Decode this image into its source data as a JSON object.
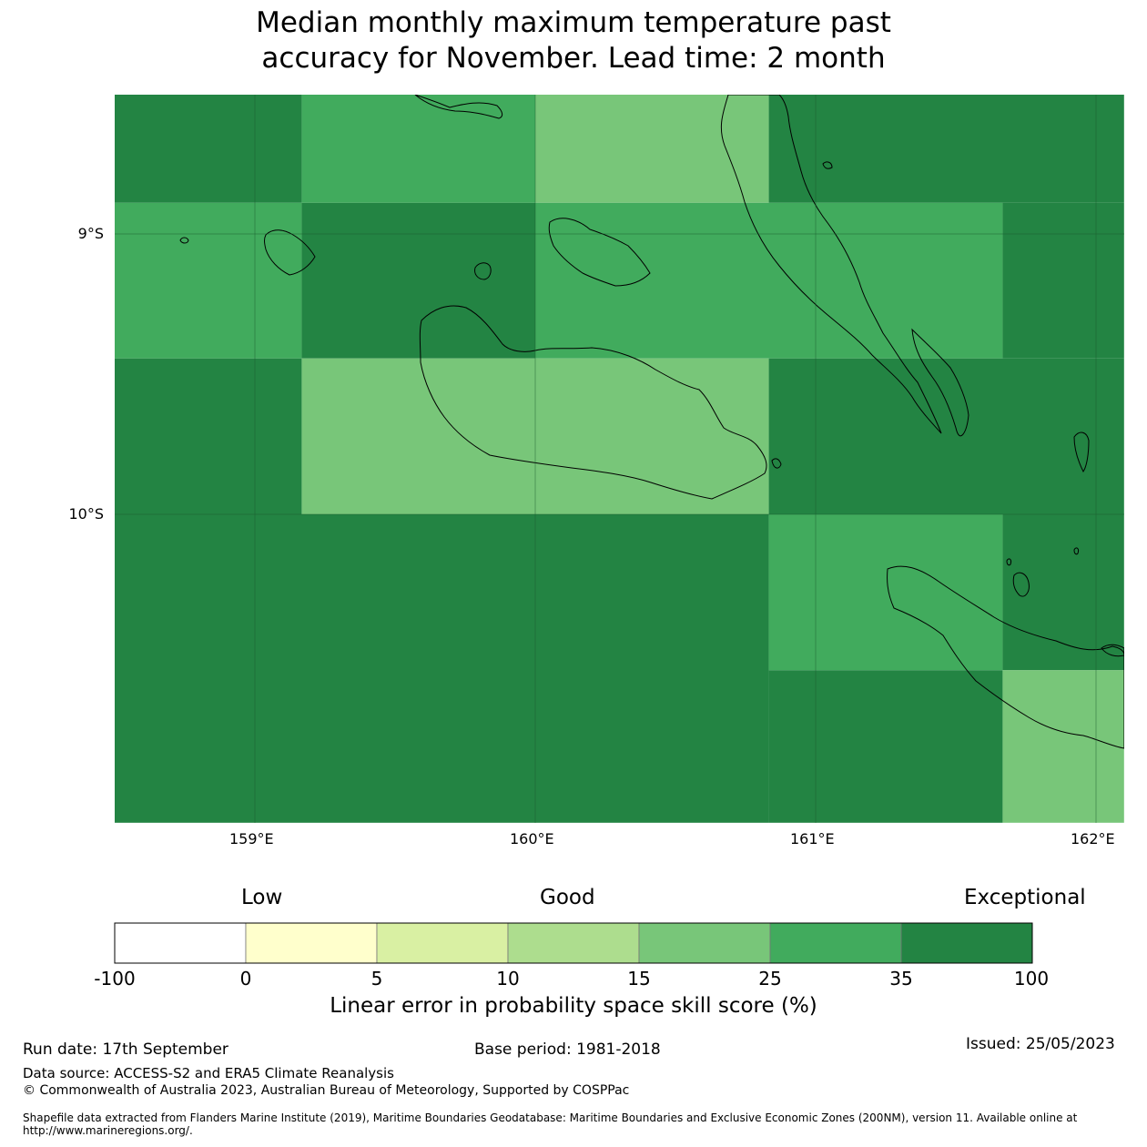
{
  "title": {
    "line1": "Median monthly maximum temperature past",
    "line2": "accuracy for November. Lead time: 2 month"
  },
  "map": {
    "lon_range": [
      158.5,
      162.1
    ],
    "lat_range": [
      -11.1,
      -8.5
    ],
    "lon_ticks": [
      {
        "value": 159,
        "label": "159°E"
      },
      {
        "value": 160,
        "label": "160°E"
      },
      {
        "value": 161,
        "label": "161°E"
      },
      {
        "value": 162,
        "label": "162°E"
      }
    ],
    "lat_ticks": [
      {
        "value": -9,
        "label": "9°S"
      },
      {
        "value": -10,
        "label": "10°S"
      }
    ],
    "colors": {
      "c35_100": "#238443",
      "c25_35": "#41ab5d",
      "c15_25": "#78c679",
      "c10_15": "#addd8e",
      "c5_10": "#d9f0a3",
      "c0_5": "#ffffcc",
      "cneg": "#ffffff"
    },
    "cells": [
      {
        "lon0": 158.5,
        "lon1": 159.167,
        "lat0": -8.5,
        "lat1": -8.889,
        "category": "35-100"
      },
      {
        "lon0": 159.167,
        "lon1": 160.0,
        "lat0": -8.5,
        "lat1": -8.889,
        "category": "25-35"
      },
      {
        "lon0": 160.0,
        "lon1": 160.833,
        "lat0": -8.5,
        "lat1": -8.889,
        "category": "15-25"
      },
      {
        "lon0": 160.833,
        "lon1": 162.1,
        "lat0": -8.5,
        "lat1": -8.889,
        "category": "35-100"
      },
      {
        "lon0": 158.5,
        "lon1": 159.167,
        "lat0": -8.889,
        "lat1": -9.444,
        "category": "25-35"
      },
      {
        "lon0": 159.167,
        "lon1": 160.0,
        "lat0": -8.889,
        "lat1": -9.444,
        "category": "35-100"
      },
      {
        "lon0": 160.0,
        "lon1": 161.667,
        "lat0": -8.889,
        "lat1": -9.444,
        "category": "25-35"
      },
      {
        "lon0": 161.667,
        "lon1": 162.1,
        "lat0": -8.889,
        "lat1": -9.444,
        "category": "35-100"
      },
      {
        "lon0": 158.5,
        "lon1": 159.167,
        "lat0": -9.444,
        "lat1": -10.0,
        "category": "35-100"
      },
      {
        "lon0": 159.167,
        "lon1": 160.833,
        "lat0": -9.444,
        "lat1": -10.0,
        "category": "15-25"
      },
      {
        "lon0": 160.833,
        "lon1": 162.1,
        "lat0": -9.444,
        "lat1": -10.0,
        "category": "35-100"
      },
      {
        "lon0": 158.5,
        "lon1": 160.833,
        "lat0": -10.0,
        "lat1": -11.1,
        "category": "35-100"
      },
      {
        "lon0": 160.833,
        "lon1": 161.667,
        "lat0": -10.0,
        "lat1": -10.556,
        "category": "25-35"
      },
      {
        "lon0": 161.667,
        "lon1": 162.1,
        "lat0": -10.0,
        "lat1": -10.556,
        "category": "35-100"
      },
      {
        "lon0": 160.833,
        "lon1": 161.667,
        "lat0": -10.556,
        "lat1": -11.1,
        "category": "35-100"
      },
      {
        "lon0": 161.667,
        "lon1": 162.1,
        "lat0": -10.556,
        "lat1": -11.1,
        "category": "15-25"
      }
    ]
  },
  "colorbar": {
    "categories": {
      "low": "Low",
      "good": "Good",
      "exceptional": "Exceptional"
    },
    "bins": [
      {
        "from": "-100",
        "to": "0",
        "color": "#ffffff"
      },
      {
        "from": "0",
        "to": "5",
        "color": "#ffffcc"
      },
      {
        "from": "5",
        "to": "10",
        "color": "#d9f0a3"
      },
      {
        "from": "10",
        "to": "15",
        "color": "#addd8e"
      },
      {
        "from": "15",
        "to": "25",
        "color": "#78c679"
      },
      {
        "from": "25",
        "to": "35",
        "color": "#41ab5d"
      },
      {
        "from": "35",
        "to": "100",
        "color": "#238443"
      }
    ],
    "ticks": [
      "-100",
      "0",
      "5",
      "10",
      "15",
      "25",
      "35",
      "100"
    ],
    "label": "Linear error in probability space skill score (%)"
  },
  "footer": {
    "run_date": "Run date: 17th September",
    "base_period": "Base period: 1981-2018",
    "issued": "Issued: 25/05/2023",
    "data_source": "Data source: ACCESS-S2 and ERA5 Climate Reanalysis",
    "copyright": "© Commonwealth of Australia 2023, Australian Bureau of Meteorology, Supported by COSPPac",
    "shapefile": "Shapefile data extracted from Flanders Marine Institute (2019), Maritime Boundaries Geodatabase: Maritime Boundaries and Exclusive Economic Zones (200NM), version 11. Available online at http://www.marineregions.org/."
  }
}
